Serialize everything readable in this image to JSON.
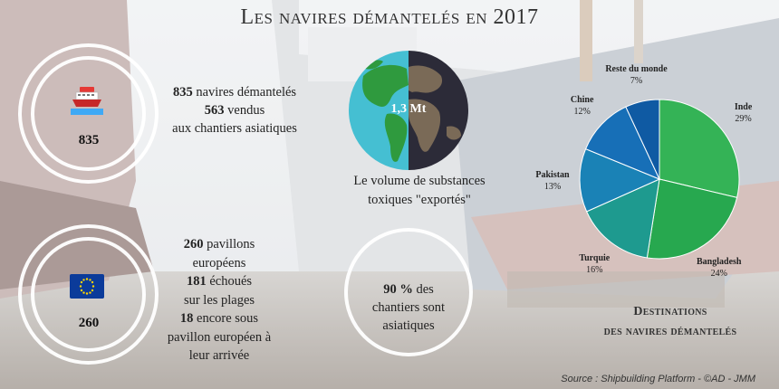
{
  "title": "Les navires démantelés en 2017",
  "circles": {
    "ships": {
      "value": "835",
      "icon": "ship-icon"
    },
    "flags": {
      "value": "260",
      "icon": "eu-flag-icon"
    },
    "globe": {
      "value": "1,3 Mt",
      "icon": "globe-icon"
    },
    "asian": {
      "icon": "ring-icon"
    }
  },
  "stats": {
    "ships": {
      "l1_num": "835",
      "l1_text": " navires démantelés",
      "l2_num": "563",
      "l2_text": " vendus",
      "l3_text": "aux chantiers asiatiques"
    },
    "flags": {
      "l1_num": "260",
      "l1_text": " pavillons",
      "l2_text": "européens",
      "l3_num": "181",
      "l3_text": " échoués",
      "l4_text": "sur les plages",
      "l5_num": "18",
      "l5_text": " encore sous",
      "l6_text": "pavillon européen à",
      "l7_text": "leur arrivée"
    },
    "globe": {
      "l1_text": "Le volume de substances",
      "l2_text": "toxiques \"exportés\""
    },
    "asian": {
      "l1_num": "90 %",
      "l1_text": " des",
      "l2_text": "chantiers sont",
      "l3_text": "asiatiques"
    }
  },
  "destinations_title": {
    "line1": "Destinations",
    "line2": "des navires démantelés"
  },
  "source": "Source : Shipbuilding Platform - ©AD - JMM",
  "colors": {
    "Inde": "#34b356",
    "Bangladesh": "#27a84f",
    "Turquie": "#1e9a8f",
    "Pakistan": "#1a82b6",
    "Chine": "#176fb7",
    "Reste du monde": "#0f5aa3"
  },
  "chart_data": {
    "type": "pie",
    "title": "Destinations des navires démantelés",
    "categories": [
      "Inde",
      "Bangladesh",
      "Turquie",
      "Pakistan",
      "Chine",
      "Reste du monde"
    ],
    "values": [
      29,
      24,
      16,
      13,
      12,
      7
    ],
    "value_labels": [
      "29%",
      "24%",
      "16%",
      "13%",
      "12%",
      "7%"
    ],
    "unit": "%"
  }
}
